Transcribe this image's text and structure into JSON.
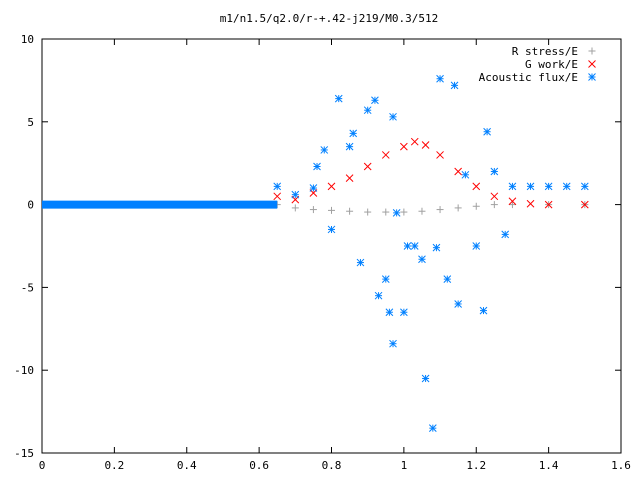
{
  "chart_data": {
    "type": "scatter",
    "title": "m1/n1.5/q2.0/r-+.42-j219/M0.3/512",
    "xlabel": "",
    "ylabel": "",
    "xlim": [
      0,
      1.6
    ],
    "ylim": [
      -15,
      10
    ],
    "x_ticks": [
      {
        "value": 0,
        "label": "0"
      },
      {
        "value": 0.2,
        "label": "0.2"
      },
      {
        "value": 0.4,
        "label": "0.4"
      },
      {
        "value": 0.6,
        "label": "0.6"
      },
      {
        "value": 0.8,
        "label": "0.8"
      },
      {
        "value": 1.0,
        "label": "1"
      },
      {
        "value": 1.2,
        "label": "1.2"
      },
      {
        "value": 1.4,
        "label": "1.4"
      },
      {
        "value": 1.6,
        "label": "1.6"
      }
    ],
    "y_ticks": [
      {
        "value": 10,
        "label": "10"
      },
      {
        "value": 5,
        "label": "5"
      },
      {
        "value": 0,
        "label": "0"
      },
      {
        "value": -5,
        "label": "-5"
      },
      {
        "value": -10,
        "label": "-10"
      },
      {
        "value": -15,
        "label": "-15"
      }
    ],
    "grid": false,
    "legend_position": "top-right",
    "series": [
      {
        "name": "R stress/E",
        "marker": "plus",
        "color": "#a0a0a0",
        "points": [
          [
            0.65,
            0.0
          ],
          [
            0.7,
            -0.2
          ],
          [
            0.75,
            -0.3
          ],
          [
            0.8,
            -0.35
          ],
          [
            0.85,
            -0.4
          ],
          [
            0.9,
            -0.45
          ],
          [
            0.95,
            -0.45
          ],
          [
            1.0,
            -0.45
          ],
          [
            1.05,
            -0.4
          ],
          [
            1.1,
            -0.3
          ],
          [
            1.15,
            -0.2
          ],
          [
            1.2,
            -0.1
          ],
          [
            1.25,
            0.0
          ],
          [
            1.3,
            0.0
          ],
          [
            1.4,
            0.0
          ],
          [
            1.5,
            0.0
          ]
        ]
      },
      {
        "name": "G work/E",
        "marker": "cross",
        "color": "#ff0000",
        "points": [
          [
            0.65,
            0.5
          ],
          [
            0.7,
            0.3
          ],
          [
            0.75,
            0.7
          ],
          [
            0.8,
            1.1
          ],
          [
            0.85,
            1.6
          ],
          [
            0.9,
            2.3
          ],
          [
            0.95,
            3.0
          ],
          [
            1.0,
            3.5
          ],
          [
            1.03,
            3.8
          ],
          [
            1.06,
            3.6
          ],
          [
            1.1,
            3.0
          ],
          [
            1.15,
            2.0
          ],
          [
            1.2,
            1.1
          ],
          [
            1.25,
            0.5
          ],
          [
            1.3,
            0.2
          ],
          [
            1.35,
            0.05
          ],
          [
            1.4,
            0.0
          ],
          [
            1.5,
            0.0
          ]
        ]
      },
      {
        "name": "Acoustic flux/E",
        "marker": "star",
        "color": "#0080ff",
        "baseline_points": [
          [
            0.0,
            0.0
          ],
          [
            0.2,
            0.0
          ],
          [
            0.4,
            0.0
          ],
          [
            0.6,
            0.0
          ],
          [
            0.65,
            0.0
          ]
        ],
        "points": [
          [
            0.65,
            1.1
          ],
          [
            0.7,
            0.6
          ],
          [
            0.75,
            1.0
          ],
          [
            0.76,
            2.3
          ],
          [
            0.78,
            3.3
          ],
          [
            0.8,
            -1.5
          ],
          [
            0.82,
            6.4
          ],
          [
            0.85,
            3.5
          ],
          [
            0.86,
            4.3
          ],
          [
            0.88,
            -3.5
          ],
          [
            0.9,
            5.7
          ],
          [
            0.92,
            6.3
          ],
          [
            0.93,
            -5.5
          ],
          [
            0.95,
            -4.5
          ],
          [
            0.96,
            -6.5
          ],
          [
            0.97,
            5.3
          ],
          [
            0.97,
            -8.4
          ],
          [
            0.98,
            -0.5
          ],
          [
            1.0,
            -6.5
          ],
          [
            1.01,
            -2.5
          ],
          [
            1.03,
            -2.5
          ],
          [
            1.05,
            -3.3
          ],
          [
            1.06,
            -10.5
          ],
          [
            1.08,
            -13.5
          ],
          [
            1.09,
            -2.6
          ],
          [
            1.1,
            7.6
          ],
          [
            1.12,
            -4.5
          ],
          [
            1.14,
            7.2
          ],
          [
            1.15,
            -6.0
          ],
          [
            1.17,
            1.8
          ],
          [
            1.2,
            -2.5
          ],
          [
            1.22,
            -6.4
          ],
          [
            1.23,
            4.4
          ],
          [
            1.25,
            2.0
          ],
          [
            1.28,
            -1.8
          ],
          [
            1.3,
            1.1
          ],
          [
            1.35,
            1.1
          ],
          [
            1.4,
            1.1
          ],
          [
            1.45,
            1.1
          ],
          [
            1.5,
            1.1
          ]
        ]
      }
    ]
  }
}
